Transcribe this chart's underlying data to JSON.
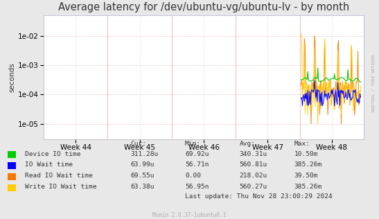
{
  "title": "Average latency for /dev/ubuntu-vg/ubuntu-lv - by month",
  "ylabel": "seconds",
  "xtick_labels": [
    "Week 44",
    "Week 45",
    "Week 46",
    "Week 47",
    "Week 48"
  ],
  "background_color": "#e8e8e8",
  "plot_bg_color": "#ffffff",
  "grid_color_h": "#ddaaaa",
  "grid_color_v": "#ffbbbb",
  "title_fontsize": 10.5,
  "axis_fontsize": 7.5,
  "tick_fontsize": 7.5,
  "legend_items": [
    {
      "label": "Device IO time",
      "color": "#00cc00"
    },
    {
      "label": "IO Wait time",
      "color": "#0000ff"
    },
    {
      "label": "Read IO Wait time",
      "color": "#f57900"
    },
    {
      "label": "Write IO Wait time",
      "color": "#ffcc00"
    }
  ],
  "legend_cols": [
    {
      "header": "Cur:",
      "values": [
        "311.28u",
        "63.99u",
        "69.55u",
        "63.38u"
      ]
    },
    {
      "header": "Min:",
      "values": [
        "69.92u",
        "56.71n",
        "0.00",
        "56.95n"
      ]
    },
    {
      "header": "Avg:",
      "values": [
        "340.31u",
        "560.81u",
        "218.02u",
        "560.27u"
      ]
    },
    {
      "header": "Max:",
      "values": [
        "10.50m",
        "385.26m",
        "39.50m",
        "385.26m"
      ]
    }
  ],
  "footer": "Last update: Thu Nov 28 23:00:29 2024",
  "munin_version": "Munin 2.0.37-1ubuntu0.1",
  "rrdtool_label": "RRDTOOL / TOBI OETIKER",
  "spike_colors": [
    "#00cc00",
    "#0000ff",
    "#f57900",
    "#ffcc00"
  ],
  "yticks": [
    1e-05,
    0.0001,
    0.001,
    0.01
  ],
  "ytick_labels": [
    "1e-05",
    "1e-04",
    "1e-03",
    "1e-02"
  ],
  "ymin": 3e-06,
  "ymax": 0.05
}
